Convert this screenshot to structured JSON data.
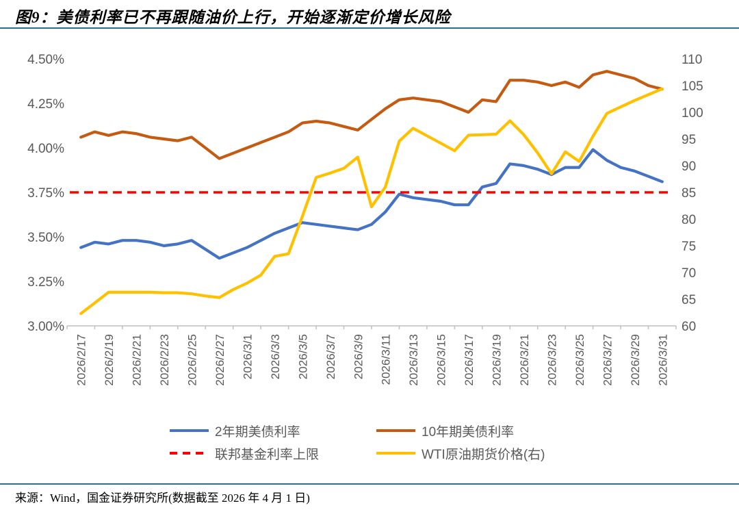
{
  "header": {
    "title": "图9：美债利率已不再跟随油价上行，开始逐渐定价增长风险"
  },
  "footer": {
    "source": "来源：Wind，国金证券研究所(数据截至 2026 年 4 月 1 日)"
  },
  "colors": {
    "accent_rule": "#2B7280",
    "axis_text": "#595959",
    "axis_line": "#BFBFBF",
    "series_2y": "#4472C4",
    "series_10y": "#C55A11",
    "series_fed_cap": "#FF0000",
    "series_wti": "#FFC000"
  },
  "chart_data": {
    "type": "line",
    "title": "图9：美债利率已不再跟随油价上行，开始逐渐定价增长风险",
    "grid": false,
    "legend_position": "bottom",
    "x": [
      "2026/2/17",
      "2026/2/18",
      "2026/2/19",
      "2026/2/20",
      "2026/2/21",
      "2026/2/22",
      "2026/2/23",
      "2026/2/24",
      "2026/2/25",
      "2026/2/26",
      "2026/2/27",
      "2026/2/28",
      "2026/3/1",
      "2026/3/2",
      "2026/3/3",
      "2026/3/4",
      "2026/3/5",
      "2026/3/6",
      "2026/3/7",
      "2026/3/8",
      "2026/3/9",
      "2026/3/10",
      "2026/3/11",
      "2026/3/12",
      "2026/3/13",
      "2026/3/14",
      "2026/3/15",
      "2026/3/16",
      "2026/3/17",
      "2026/3/18",
      "2026/3/19",
      "2026/3/20",
      "2026/3/21",
      "2026/3/22",
      "2026/3/23",
      "2026/3/24",
      "2026/3/25",
      "2026/3/26",
      "2026/3/27",
      "2026/3/28",
      "2026/3/29",
      "2026/3/30",
      "2026/3/31"
    ],
    "x_tick_labels": [
      "2026/2/17",
      "2026/2/19",
      "2026/2/21",
      "2026/2/23",
      "2026/2/25",
      "2026/2/27",
      "2026/3/1",
      "2026/3/3",
      "2026/3/5",
      "2026/3/7",
      "2026/3/9",
      "2026/3/11",
      "2026/3/13",
      "2026/3/15",
      "2026/3/17",
      "2026/3/19",
      "2026/3/21",
      "2026/3/23",
      "2026/3/25",
      "2026/3/27",
      "2026/3/29",
      "2026/3/31"
    ],
    "left_axis": {
      "min": 3.0,
      "max": 4.5,
      "tick_labels": [
        "3.00%",
        "3.25%",
        "3.50%",
        "3.75%",
        "4.00%",
        "4.25%",
        "4.50%"
      ],
      "tick_values": [
        3.0,
        3.25,
        3.5,
        3.75,
        4.0,
        4.25,
        4.5
      ]
    },
    "right_axis": {
      "min": 60,
      "max": 110,
      "tick_labels": [
        "60",
        "65",
        "70",
        "75",
        "80",
        "85",
        "90",
        "95",
        "100",
        "105",
        "110"
      ],
      "tick_values": [
        60,
        65,
        70,
        75,
        80,
        85,
        90,
        95,
        100,
        105,
        110
      ]
    },
    "series": [
      {
        "name": "2年期美债利率",
        "axis": "left",
        "style": "solid",
        "color": "#4472C4",
        "values": [
          3.44,
          3.47,
          3.46,
          3.48,
          3.48,
          3.47,
          3.45,
          3.46,
          3.48,
          3.43,
          3.38,
          3.41,
          3.44,
          3.48,
          3.52,
          3.55,
          3.58,
          3.57,
          3.56,
          3.55,
          3.54,
          3.57,
          3.64,
          3.74,
          3.72,
          3.71,
          3.7,
          3.68,
          3.68,
          3.78,
          3.8,
          3.91,
          3.9,
          3.88,
          3.85,
          3.89,
          3.89,
          3.99,
          3.93,
          3.89,
          3.87,
          3.84,
          3.81
        ]
      },
      {
        "name": "10年期美债利率",
        "axis": "left",
        "style": "solid",
        "color": "#C55A11",
        "values": [
          4.06,
          4.09,
          4.07,
          4.09,
          4.08,
          4.06,
          4.05,
          4.04,
          4.06,
          4.0,
          3.94,
          3.97,
          4.0,
          4.03,
          4.06,
          4.09,
          4.14,
          4.15,
          4.14,
          4.12,
          4.1,
          4.16,
          4.22,
          4.27,
          4.28,
          4.27,
          4.26,
          4.23,
          4.2,
          4.27,
          4.26,
          4.38,
          4.38,
          4.37,
          4.35,
          4.37,
          4.34,
          4.41,
          4.43,
          4.41,
          4.39,
          4.35,
          4.33
        ]
      },
      {
        "name": "联邦基金利率上限",
        "axis": "left",
        "style": "dashed",
        "color": "#FF0000",
        "constant": 3.75
      },
      {
        "name": "WTI原油期货价格(右)",
        "axis": "right",
        "style": "solid",
        "color": "#FFC000",
        "values": [
          62.3,
          64.3,
          66.3,
          66.3,
          66.3,
          66.3,
          66.2,
          66.2,
          66.0,
          65.6,
          65.3,
          66.8,
          68.0,
          69.5,
          73.0,
          73.5,
          80.5,
          87.8,
          88.6,
          89.5,
          91.6,
          82.3,
          86.0,
          94.6,
          97.0,
          95.6,
          94.2,
          92.8,
          95.7,
          95.8,
          95.9,
          98.4,
          95.8,
          92.4,
          88.5,
          92.6,
          90.8,
          95.5,
          99.8,
          101.0,
          102.2,
          103.3,
          104.4
        ]
      }
    ]
  }
}
